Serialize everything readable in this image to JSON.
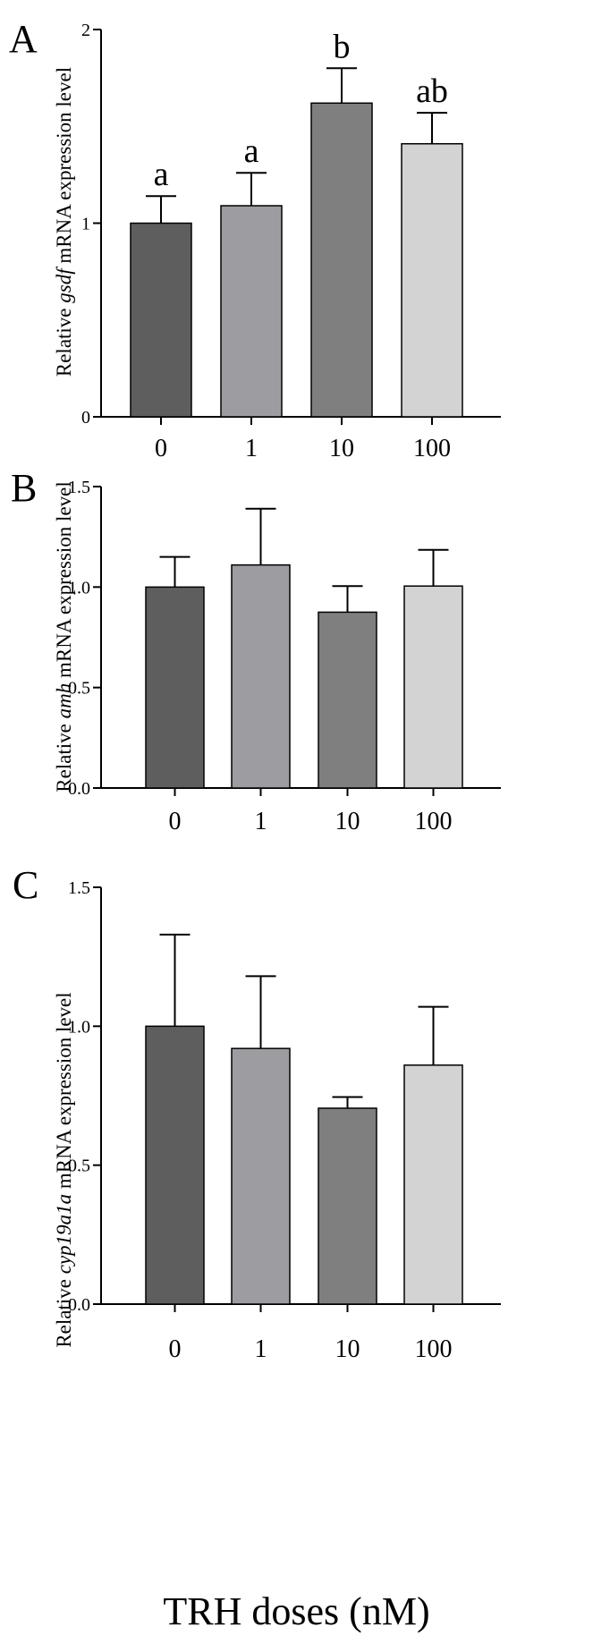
{
  "chart_data": [
    {
      "panel": "A",
      "type": "bar",
      "ylabel_prefix": "Relative ",
      "gene": "gsdf",
      "ylabel_suffix": " mRNA expression level",
      "categories": [
        "0",
        "1",
        "10",
        "100"
      ],
      "values": [
        1.0,
        1.09,
        1.62,
        1.41
      ],
      "errors": [
        0.14,
        0.17,
        0.18,
        0.16
      ],
      "annotations": [
        "a",
        "a",
        "b",
        "ab"
      ],
      "colors": [
        "#5e5e5e",
        "#9d9da1",
        "#7f7f7f",
        "#d3d3d3"
      ],
      "ylim": [
        0,
        2
      ],
      "yticks": [
        "0",
        "1",
        "2"
      ]
    },
    {
      "panel": "B",
      "type": "bar",
      "ylabel_prefix": "Relative ",
      "gene": "amh",
      "ylabel_suffix": " mRNA expression level",
      "categories": [
        "0",
        "1",
        "10",
        "100"
      ],
      "values": [
        1.0,
        1.11,
        0.875,
        1.005
      ],
      "errors": [
        0.15,
        0.28,
        0.13,
        0.18
      ],
      "annotations": [
        "",
        "",
        "",
        ""
      ],
      "colors": [
        "#5e5e5e",
        "#9d9da1",
        "#7f7f7f",
        "#d3d3d3"
      ],
      "ylim": [
        0,
        1.5
      ],
      "yticks": [
        "0.0",
        "0.5",
        "1.0",
        "1.5"
      ]
    },
    {
      "panel": "C",
      "type": "bar",
      "ylabel_prefix": "Relative ",
      "gene": "cyp19a1a",
      "ylabel_suffix": " mRNA expression level",
      "categories": [
        "0",
        "1",
        "10",
        "100"
      ],
      "values": [
        1.0,
        0.92,
        0.705,
        0.86
      ],
      "errors": [
        0.33,
        0.26,
        0.04,
        0.21
      ],
      "annotations": [
        "",
        "",
        "",
        ""
      ],
      "colors": [
        "#5e5e5e",
        "#9d9da1",
        "#7f7f7f",
        "#d3d3d3"
      ],
      "ylim": [
        0,
        1.5
      ],
      "yticks": [
        "0.0",
        "0.5",
        "1.0",
        "1.5"
      ]
    }
  ],
  "xlabel": "TRH doses (nM)"
}
